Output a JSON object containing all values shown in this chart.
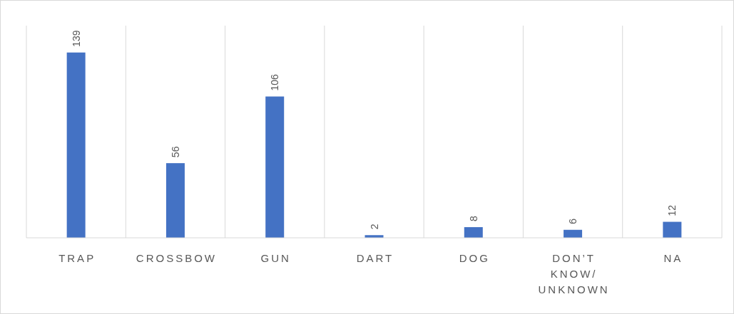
{
  "chart_data": {
    "type": "bar",
    "categories": [
      "TRAP",
      "CROSSBOW",
      "GUN",
      "DART",
      "DOG",
      "DON’T KNOW/ UNKNOWN",
      "NA"
    ],
    "values": [
      139,
      56,
      106,
      2,
      8,
      6,
      12
    ],
    "color": "#4472c4",
    "data_labels": true,
    "grid": "x"
  }
}
